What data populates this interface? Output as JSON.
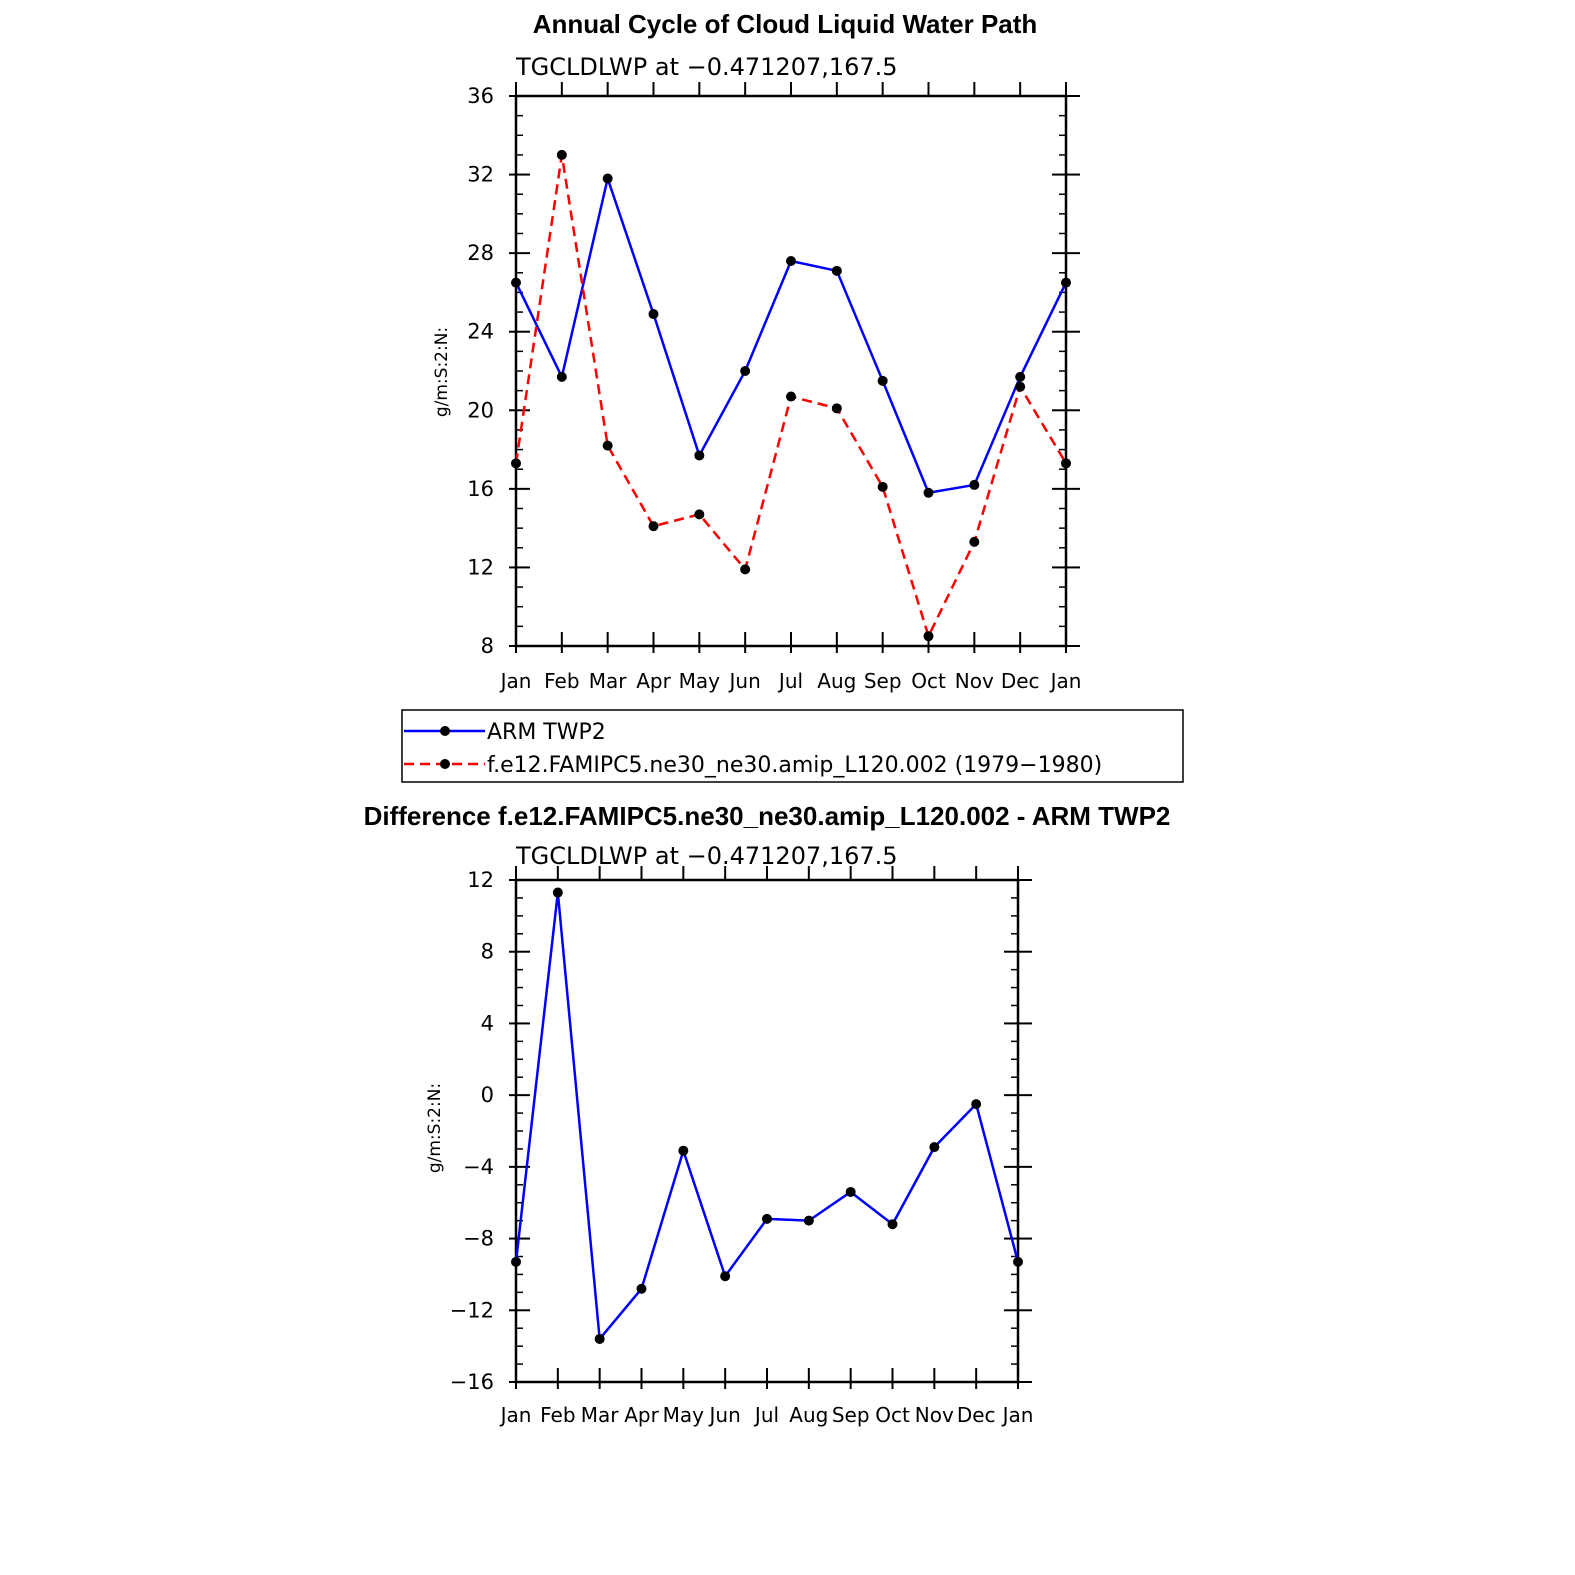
{
  "colors": {
    "arm": "#0000ff",
    "model": "#ff0000",
    "marker": "#000000"
  },
  "chart_data": [
    {
      "type": "line",
      "title": "Annual Cycle of Cloud Liquid Water Path",
      "subtitle": "TGCLDLWP at −0.471207,167.5",
      "xlabel": "",
      "ylabel": "g/m:S:2:N:",
      "categories": [
        "Jan",
        "Feb",
        "Mar",
        "Apr",
        "May",
        "Jun",
        "Jul",
        "Aug",
        "Sep",
        "Oct",
        "Nov",
        "Dec",
        "Jan"
      ],
      "ylim": [
        8,
        36
      ],
      "yticks": [
        8,
        12,
        16,
        20,
        24,
        28,
        32,
        36
      ],
      "ytick_labels": [
        "8",
        "12",
        "16",
        "20",
        "24",
        "28",
        "32",
        "36"
      ],
      "series": [
        {
          "name": "ARM TWP2",
          "style": "solid",
          "color": "#0000ff",
          "values": [
            26.5,
            21.7,
            31.8,
            24.9,
            17.7,
            22.0,
            27.6,
            27.1,
            21.5,
            15.8,
            16.2,
            21.7,
            26.5
          ]
        },
        {
          "name": "f.e12.FAMIPC5.ne30_ne30.amip_L120.002 (1979−1980)",
          "style": "dashed",
          "color": "#ff0000",
          "values": [
            17.3,
            33.0,
            18.2,
            14.1,
            14.7,
            11.9,
            20.7,
            20.1,
            16.1,
            8.5,
            13.3,
            21.2,
            17.3
          ]
        }
      ],
      "legend": "below"
    },
    {
      "type": "line",
      "title": "Difference f.e12.FAMIPC5.ne30_ne30.amip_L120.002 - ARM TWP2",
      "subtitle": "TGCLDLWP at −0.471207,167.5",
      "xlabel": "",
      "ylabel": "g/m:S:2:N:",
      "categories": [
        "Jan",
        "Feb",
        "Mar",
        "Apr",
        "May",
        "Jun",
        "Jul",
        "Aug",
        "Sep",
        "Oct",
        "Nov",
        "Dec",
        "Jan"
      ],
      "ylim": [
        -16,
        12
      ],
      "yticks": [
        -16,
        -12,
        -8,
        -4,
        0,
        4,
        8,
        12
      ],
      "ytick_labels": [
        "−16",
        "−12",
        "−8",
        "−4",
        "0",
        "4",
        "8",
        "12"
      ],
      "series": [
        {
          "name": "Difference",
          "style": "solid",
          "color": "#0000ff",
          "values": [
            -9.3,
            11.3,
            -13.6,
            -10.8,
            -3.1,
            -10.1,
            -6.9,
            -7.0,
            -5.4,
            -7.2,
            -2.9,
            -0.5,
            -9.3
          ]
        }
      ]
    }
  ]
}
